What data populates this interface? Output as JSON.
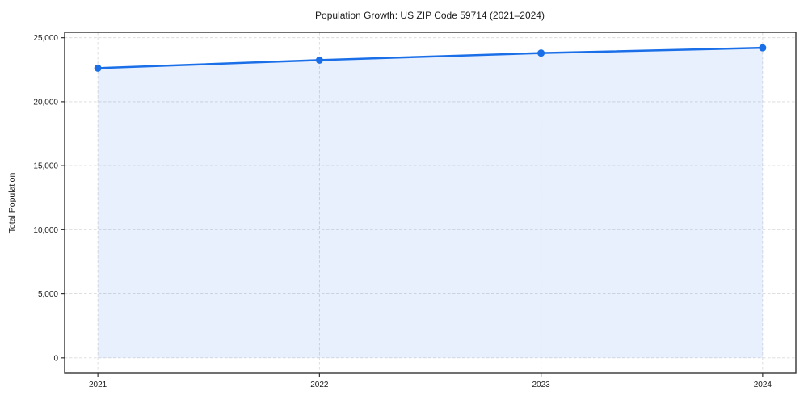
{
  "chart_data": {
    "type": "line",
    "title": "Population Growth: US ZIP Code 59714 (2021–2024)",
    "xlabel": "",
    "ylabel": "Total Population",
    "x": [
      2021,
      2022,
      2023,
      2024
    ],
    "xtick_labels": [
      "2021",
      "2022",
      "2023",
      "2024"
    ],
    "series": [
      {
        "name": "Total Population",
        "values": [
          22620,
          23250,
          23800,
          24210
        ]
      }
    ],
    "yticks": [
      0,
      5000,
      10000,
      15000,
      20000,
      25000
    ],
    "ytick_labels": [
      "0",
      "5,000",
      "10,000",
      "15,000",
      "20,000",
      "25,000"
    ],
    "xlim": [
      2020.85,
      2024.15
    ],
    "ylim": [
      -1210,
      25420
    ],
    "grid": true,
    "grid_style": "dashed",
    "grid_color": "#d9d9d9",
    "legend": false,
    "area_fill": true,
    "fill_baseline": 0,
    "line_color": "#1a6fe8",
    "fill_color": "#1a6fe8",
    "fill_opacity": 0.1,
    "marker": "circle",
    "spine_color": "#333333",
    "background_color": "#ffffff"
  }
}
